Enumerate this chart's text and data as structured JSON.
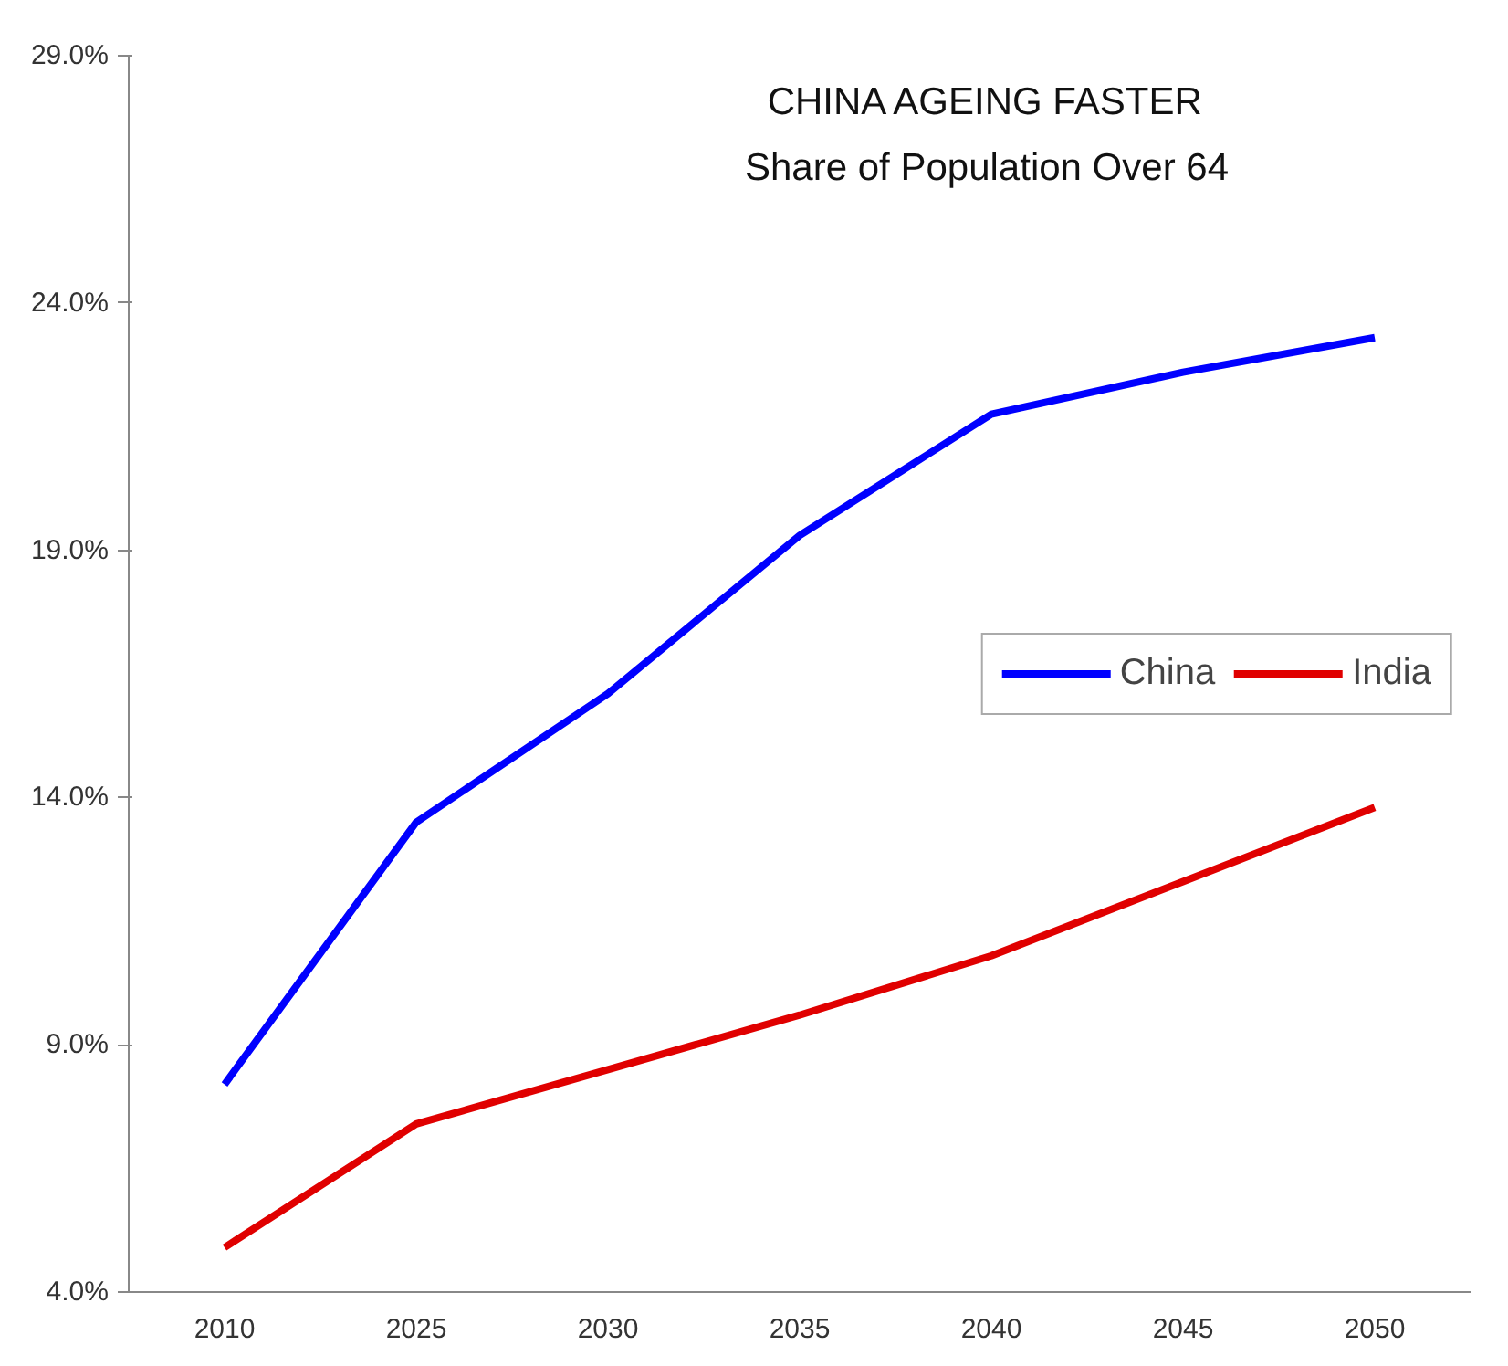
{
  "chart_data": {
    "type": "line",
    "title": "CHINA AGEING FASTER",
    "subtitle": "Share of Population Over 64",
    "categories": [
      "2010",
      "2025",
      "2030",
      "2035",
      "2040",
      "2045",
      "2050"
    ],
    "series": [
      {
        "name": "China",
        "color": "#0000ff",
        "values": [
          8.2,
          13.5,
          16.1,
          19.3,
          21.75,
          22.6,
          23.3
        ]
      },
      {
        "name": "India",
        "color": "#e00000",
        "values": [
          4.9,
          7.4,
          8.5,
          9.6,
          10.8,
          12.3,
          13.8
        ]
      }
    ],
    "ylim": [
      4,
      29
    ],
    "yticks": [
      {
        "value": 4,
        "label": "4.0%"
      },
      {
        "value": 9,
        "label": "9.0%"
      },
      {
        "value": 14,
        "label": "14.0%"
      },
      {
        "value": 19,
        "label": "19.0%"
      },
      {
        "value": 24,
        "label": "24.0%"
      },
      {
        "value": 29,
        "label": "29.0%"
      }
    ],
    "grid": false,
    "legend": "center right",
    "marker": "none",
    "line_style": "solid"
  }
}
